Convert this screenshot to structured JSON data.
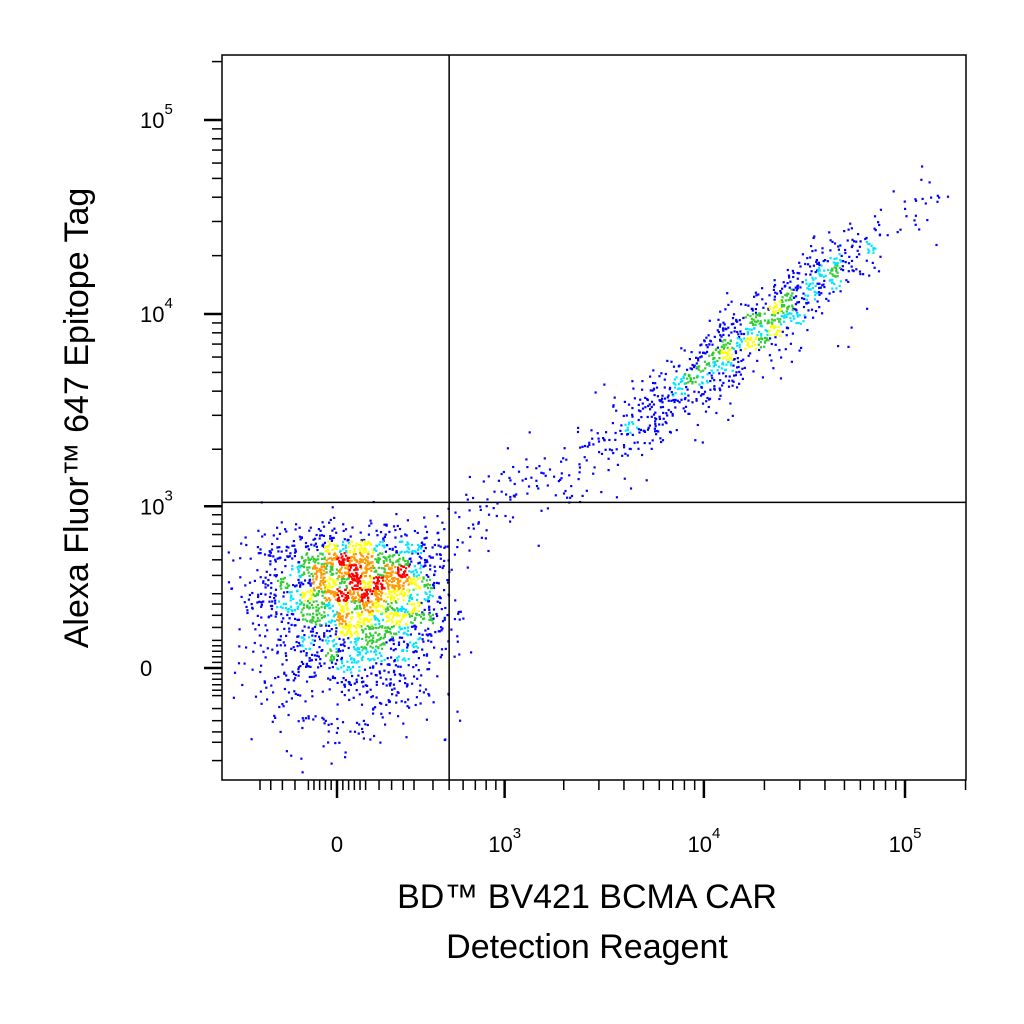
{
  "chart_data": {
    "type": "scatter",
    "title": "",
    "xlabel_lines": [
      "BD™ BV421 BCMA CAR",
      "Detection Reagent"
    ],
    "ylabel": "Alexa Fluor™ 647 Epitope Tag",
    "x_ticks": [
      {
        "value": 0,
        "label": "0"
      },
      {
        "value": 1000,
        "label": "10",
        "exp": "3"
      },
      {
        "value": 10000,
        "label": "10",
        "exp": "4"
      },
      {
        "value": 100000,
        "label": "10",
        "exp": "5"
      }
    ],
    "y_ticks": [
      {
        "value": 0,
        "label": "0"
      },
      {
        "value": 1000,
        "label": "10",
        "exp": "3"
      },
      {
        "value": 10000,
        "label": "10",
        "exp": "4"
      },
      {
        "value": 100000,
        "label": "10",
        "exp": "5"
      }
    ],
    "xlim": [
      -300,
      200000
    ],
    "ylim": [
      -400,
      200000
    ],
    "scale": "biexponential",
    "gates": {
      "x": 500,
      "y": 1050
    },
    "density_colors": [
      "#0000ff",
      "#00e5ff",
      "#33cc33",
      "#ffff00",
      "#ff9900",
      "#ff0000"
    ],
    "populations": [
      {
        "name": "",
        "count": 2400,
        "x_center": 60,
        "y_center": 280,
        "x_spread": 180,
        "y_spread": 220
      },
      {
        "name": "",
        "count": 900,
        "x_center": 18000,
        "y_center": 8500,
        "x_spread": 0.35,
        "y_spread": 0.25
      },
      {
        "name": "",
        "count": 260,
        "x_center": 2500,
        "y_center": 1800,
        "x_spread": 0.55,
        "y_spread": 0.35
      }
    ]
  }
}
